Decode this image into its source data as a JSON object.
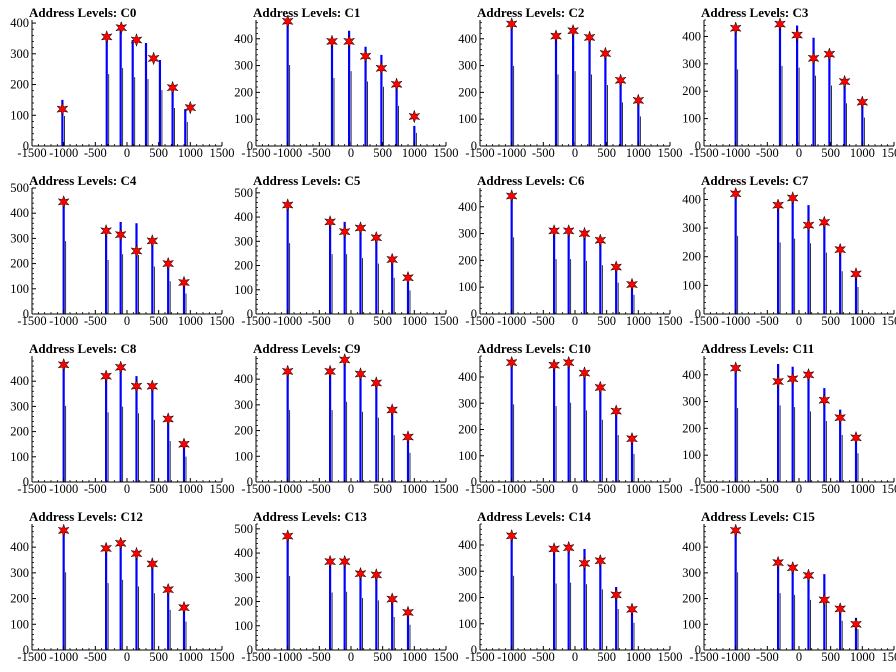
{
  "figure": {
    "panels": [
      {
        "title": "Address Levels: C0"
      },
      {
        "title": "Address Levels: C1"
      },
      {
        "title": "Address Levels: C2"
      },
      {
        "title": "Address Levels: C3"
      },
      {
        "title": "Address Levels: C4"
      },
      {
        "title": "Address Levels: C5"
      },
      {
        "title": "Address Levels: C6"
      },
      {
        "title": "Address Levels: C7"
      },
      {
        "title": "Address Levels: C8"
      },
      {
        "title": "Address Levels: C9"
      },
      {
        "title": "Address Levels: C10"
      },
      {
        "title": "Address Levels: C11"
      },
      {
        "title": "Address Levels: C12"
      },
      {
        "title": "Address Levels: C13"
      },
      {
        "title": "Address Levels: C14"
      },
      {
        "title": "Address Levels: C15"
      }
    ]
  },
  "colors": {
    "histogram": "#0000ff",
    "peak_marker": "#ff0000",
    "axis": "#000000"
  },
  "chart_data": [
    {
      "type": "bar",
      "title": "Address Levels: C0",
      "xlim": [
        -1500,
        1500
      ],
      "ylim": [
        0,
        410
      ],
      "xticks": [
        -1500,
        -1000,
        -500,
        0,
        500,
        1000,
        1500
      ],
      "xtick_labels": [
        "-1500",
        "-1000",
        "-500",
        "0",
        "500",
        "1000",
        "1500"
      ],
      "yticks": [
        0,
        100,
        200,
        300,
        400
      ],
      "ytick_labels": [
        "0",
        "100",
        "200",
        "300",
        "400"
      ],
      "bars_x": [
        -1020,
        -320,
        -100,
        90,
        300,
        520,
        720,
        920
      ],
      "bars_y": [
        150,
        360,
        390,
        345,
        335,
        280,
        190,
        120
      ],
      "peaks_x": [
        -1020,
        -320,
        -90,
        150,
        420,
        720,
        1000
      ],
      "peaks_y": [
        120,
        355,
        385,
        345,
        285,
        190,
        125
      ]
    },
    {
      "type": "bar",
      "title": "Address Levels: C1",
      "xlim": [
        -1500,
        1500
      ],
      "ylim": [
        0,
        470
      ],
      "xticks": [
        -1500,
        -1000,
        -500,
        0,
        500,
        1000,
        1500
      ],
      "xtick_labels": [
        "-1500",
        "-1000",
        "-500",
        "0",
        "500",
        "1000",
        "1500"
      ],
      "yticks": [
        0,
        100,
        200,
        300,
        400
      ],
      "ytick_labels": [
        "0",
        "100",
        "200",
        "300",
        "400"
      ],
      "bars_x": [
        -1000,
        -300,
        -30,
        230,
        480,
        720,
        1000
      ],
      "bars_y": [
        465,
        390,
        430,
        370,
        340,
        230,
        75
      ],
      "peaks_x": [
        -1000,
        -300,
        -30,
        230,
        480,
        720,
        1000
      ],
      "peaks_y": [
        465,
        390,
        390,
        335,
        290,
        230,
        110
      ]
    },
    {
      "type": "bar",
      "title": "Address Levels: C2",
      "xlim": [
        -1500,
        1500
      ],
      "ylim": [
        0,
        470
      ],
      "xticks": [
        -1500,
        -1000,
        -500,
        0,
        500,
        1000,
        1500
      ],
      "xtick_labels": [
        "-1500",
        "-1000",
        "-500",
        "0",
        "500",
        "1000",
        "1500"
      ],
      "yticks": [
        0,
        100,
        200,
        300,
        400
      ],
      "ytick_labels": [
        "0",
        "100",
        "200",
        "300",
        "400"
      ],
      "bars_x": [
        -1000,
        -300,
        -30,
        230,
        480,
        720,
        1000
      ],
      "bars_y": [
        460,
        410,
        430,
        410,
        350,
        250,
        170
      ],
      "peaks_x": [
        -1000,
        -300,
        -30,
        230,
        480,
        720,
        1000
      ],
      "peaks_y": [
        455,
        410,
        430,
        405,
        345,
        245,
        170
      ]
    },
    {
      "type": "bar",
      "title": "Address Levels: C3",
      "xlim": [
        -1500,
        1500
      ],
      "ylim": [
        0,
        460
      ],
      "xticks": [
        -1500,
        -1000,
        -500,
        0,
        500,
        1000,
        1500
      ],
      "xtick_labels": [
        "-1500",
        "-1000",
        "-500",
        "0",
        "500",
        "1000",
        "1500"
      ],
      "yticks": [
        0,
        100,
        200,
        300,
        400
      ],
      "ytick_labels": [
        "0",
        "100",
        "200",
        "300",
        "400"
      ],
      "bars_x": [
        -1000,
        -300,
        -30,
        230,
        480,
        720,
        1000
      ],
      "bars_y": [
        430,
        450,
        440,
        395,
        340,
        240,
        160
      ],
      "peaks_x": [
        -1000,
        -300,
        -30,
        230,
        480,
        720,
        1000
      ],
      "peaks_y": [
        430,
        445,
        405,
        320,
        335,
        235,
        160
      ]
    },
    {
      "type": "bar",
      "title": "Address Levels: C4",
      "xlim": [
        -1500,
        1500
      ],
      "ylim": [
        0,
        500
      ],
      "xticks": [
        -1500,
        -1000,
        -500,
        0,
        500,
        1000,
        1500
      ],
      "xtick_labels": [
        "-1500",
        "-1000",
        "-500",
        "0",
        "500",
        "1000",
        "1500"
      ],
      "yticks": [
        0,
        100,
        200,
        300,
        400,
        500
      ],
      "ytick_labels": [
        "0",
        "100",
        "200",
        "300",
        "400",
        "500"
      ],
      "bars_x": [
        -1000,
        -330,
        -100,
        150,
        400,
        650,
        900
      ],
      "bars_y": [
        445,
        330,
        365,
        360,
        290,
        200,
        125
      ],
      "peaks_x": [
        -1000,
        -330,
        -100,
        150,
        400,
        650,
        900
      ],
      "peaks_y": [
        445,
        330,
        315,
        250,
        290,
        200,
        125
      ]
    },
    {
      "type": "bar",
      "title": "Address Levels: C5",
      "xlim": [
        -1500,
        1500
      ],
      "ylim": [
        0,
        520
      ],
      "xticks": [
        -1500,
        -1000,
        -500,
        0,
        500,
        1000,
        1500
      ],
      "xtick_labels": [
        "-1500",
        "-1000",
        "-500",
        "0",
        "500",
        "1000",
        "1500"
      ],
      "yticks": [
        0,
        100,
        200,
        300,
        400,
        500
      ],
      "ytick_labels": [
        "0",
        "100",
        "200",
        "300",
        "400",
        "500"
      ],
      "bars_x": [
        -1000,
        -330,
        -100,
        150,
        400,
        650,
        900
      ],
      "bars_y": [
        450,
        380,
        380,
        355,
        320,
        230,
        150
      ],
      "peaks_x": [
        -1000,
        -330,
        -100,
        150,
        400,
        650,
        900
      ],
      "peaks_y": [
        450,
        380,
        340,
        355,
        315,
        225,
        150
      ]
    },
    {
      "type": "bar",
      "title": "Address Levels: C6",
      "xlim": [
        -1500,
        1500
      ],
      "ylim": [
        0,
        470
      ],
      "xticks": [
        -1500,
        -1000,
        -500,
        0,
        500,
        1000,
        1500
      ],
      "xtick_labels": [
        "-1500",
        "-1000",
        "-500",
        "0",
        "500",
        "1000",
        "1500"
      ],
      "yticks": [
        0,
        100,
        200,
        300,
        400
      ],
      "ytick_labels": [
        "0",
        "100",
        "200",
        "300",
        "400"
      ],
      "bars_x": [
        -1000,
        -330,
        -100,
        150,
        400,
        650,
        900
      ],
      "bars_y": [
        440,
        315,
        315,
        305,
        280,
        180,
        110
      ],
      "peaks_x": [
        -1000,
        -330,
        -100,
        150,
        400,
        650,
        900
      ],
      "peaks_y": [
        440,
        310,
        310,
        300,
        275,
        175,
        110
      ]
    },
    {
      "type": "bar",
      "title": "Address Levels: C7",
      "xlim": [
        -1500,
        1500
      ],
      "ylim": [
        0,
        440
      ],
      "xticks": [
        -1500,
        -1000,
        -500,
        0,
        500,
        1000,
        1500
      ],
      "xtick_labels": [
        "-1500",
        "-1000",
        "-500",
        "0",
        "500",
        "1000",
        "1500"
      ],
      "yticks": [
        0,
        100,
        200,
        300,
        400
      ],
      "ytick_labels": [
        "0",
        "100",
        "200",
        "300",
        "400"
      ],
      "bars_x": [
        -1000,
        -330,
        -100,
        150,
        400,
        650,
        900
      ],
      "bars_y": [
        420,
        385,
        405,
        380,
        330,
        230,
        145
      ],
      "peaks_x": [
        -1000,
        -330,
        -100,
        150,
        400,
        650,
        900
      ],
      "peaks_y": [
        420,
        380,
        405,
        310,
        320,
        225,
        140
      ]
    },
    {
      "type": "bar",
      "title": "Address Levels: C8",
      "xlim": [
        -1500,
        1500
      ],
      "ylim": [
        0,
        500
      ],
      "xticks": [
        -1500,
        -1000,
        -500,
        0,
        500,
        1000,
        1500
      ],
      "xtick_labels": [
        "-1500",
        "-1000",
        "-500",
        "0",
        "500",
        "1000",
        "1500"
      ],
      "yticks": [
        0,
        100,
        200,
        300,
        400
      ],
      "ytick_labels": [
        "0",
        "100",
        "200",
        "300",
        "400"
      ],
      "bars_x": [
        -1000,
        -330,
        -100,
        150,
        400,
        650,
        900
      ],
      "bars_y": [
        465,
        425,
        460,
        420,
        380,
        250,
        155
      ],
      "peaks_x": [
        -1000,
        -330,
        -100,
        150,
        400,
        650,
        900
      ],
      "peaks_y": [
        465,
        420,
        455,
        380,
        380,
        250,
        150
      ]
    },
    {
      "type": "bar",
      "title": "Address Levels: C9",
      "xlim": [
        -1500,
        1500
      ],
      "ylim": [
        0,
        490
      ],
      "xticks": [
        -1500,
        -1000,
        -500,
        0,
        500,
        1000,
        1500
      ],
      "xtick_labels": [
        "-1500",
        "-1000",
        "-500",
        "0",
        "500",
        "1000",
        "1500"
      ],
      "yticks": [
        0,
        100,
        200,
        300,
        400
      ],
      "ytick_labels": [
        "0",
        "100",
        "200",
        "300",
        "400"
      ],
      "bars_x": [
        -1000,
        -330,
        -100,
        150,
        400,
        650,
        900
      ],
      "bars_y": [
        430,
        430,
        480,
        420,
        385,
        280,
        175
      ],
      "peaks_x": [
        -1000,
        -330,
        -100,
        150,
        400,
        650,
        900
      ],
      "peaks_y": [
        430,
        430,
        475,
        420,
        385,
        280,
        175
      ]
    },
    {
      "type": "bar",
      "title": "Address Levels: C10",
      "xlim": [
        -1500,
        1500
      ],
      "ylim": [
        0,
        480
      ],
      "xticks": [
        -1500,
        -1000,
        -500,
        0,
        500,
        1000,
        1500
      ],
      "xtick_labels": [
        "-1500",
        "-1000",
        "-500",
        "0",
        "500",
        "1000",
        "1500"
      ],
      "yticks": [
        0,
        100,
        200,
        300,
        400
      ],
      "ytick_labels": [
        "0",
        "100",
        "200",
        "300",
        "400"
      ],
      "bars_x": [
        -1000,
        -330,
        -100,
        150,
        400,
        650,
        900
      ],
      "bars_y": [
        455,
        445,
        465,
        420,
        365,
        275,
        165
      ],
      "peaks_x": [
        -1000,
        -330,
        -100,
        150,
        400,
        650,
        900
      ],
      "peaks_y": [
        455,
        445,
        455,
        415,
        360,
        270,
        165
      ]
    },
    {
      "type": "bar",
      "title": "Address Levels: C11",
      "xlim": [
        -1500,
        1500
      ],
      "ylim": [
        0,
        470
      ],
      "xticks": [
        -1500,
        -1000,
        -500,
        0,
        500,
        1000,
        1500
      ],
      "xtick_labels": [
        "-1500",
        "-1000",
        "-500",
        "0",
        "500",
        "1000",
        "1500"
      ],
      "yticks": [
        0,
        100,
        200,
        300,
        400
      ],
      "ytick_labels": [
        "0",
        "100",
        "200",
        "300",
        "400"
      ],
      "bars_x": [
        -1000,
        -330,
        -100,
        150,
        400,
        650,
        900
      ],
      "bars_y": [
        425,
        440,
        430,
        405,
        350,
        270,
        165
      ],
      "peaks_x": [
        -1000,
        -330,
        -100,
        150,
        400,
        650,
        900
      ],
      "peaks_y": [
        425,
        375,
        385,
        400,
        305,
        240,
        165
      ]
    },
    {
      "type": "bar",
      "title": "Address Levels: C12",
      "xlim": [
        -1500,
        1500
      ],
      "ylim": [
        0,
        490
      ],
      "xticks": [
        -1500,
        -1000,
        -500,
        0,
        500,
        1000,
        1500
      ],
      "xtick_labels": [
        "-1500",
        "-1000",
        "-500",
        "0",
        "500",
        "1000",
        "1500"
      ],
      "yticks": [
        0,
        100,
        200,
        300,
        400
      ],
      "ytick_labels": [
        "0",
        "100",
        "200",
        "300",
        "400"
      ],
      "bars_x": [
        -1000,
        -330,
        -100,
        150,
        400,
        650,
        900
      ],
      "bars_y": [
        465,
        400,
        420,
        380,
        340,
        240,
        170
      ],
      "peaks_x": [
        -1000,
        -330,
        -100,
        150,
        400,
        650,
        900
      ],
      "peaks_y": [
        465,
        395,
        415,
        375,
        335,
        235,
        165
      ]
    },
    {
      "type": "bar",
      "title": "Address Levels: C13",
      "xlim": [
        -1500,
        1500
      ],
      "ylim": [
        0,
        520
      ],
      "xticks": [
        -1500,
        -1000,
        -500,
        0,
        500,
        1000,
        1500
      ],
      "xtick_labels": [
        "-1500",
        "-1000",
        "-500",
        "0",
        "500",
        "1000",
        "1500"
      ],
      "yticks": [
        0,
        100,
        200,
        300,
        400,
        500
      ],
      "ytick_labels": [
        "0",
        "100",
        "200",
        "300",
        "400",
        "500"
      ],
      "bars_x": [
        -1000,
        -330,
        -100,
        150,
        400,
        650,
        900
      ],
      "bars_y": [
        470,
        365,
        370,
        330,
        315,
        210,
        160
      ],
      "peaks_x": [
        -1000,
        -330,
        -100,
        150,
        400,
        650,
        900
      ],
      "peaks_y": [
        470,
        365,
        365,
        315,
        310,
        210,
        155
      ]
    },
    {
      "type": "bar",
      "title": "Address Levels: C14",
      "xlim": [
        -1500,
        1500
      ],
      "ylim": [
        0,
        480
      ],
      "xticks": [
        -1500,
        -1000,
        -500,
        0,
        500,
        1000,
        1500
      ],
      "xtick_labels": [
        "-1500",
        "-1000",
        "-500",
        "0",
        "500",
        "1000",
        "1500"
      ],
      "yticks": [
        0,
        100,
        200,
        300,
        400
      ],
      "ytick_labels": [
        "0",
        "100",
        "200",
        "300",
        "400"
      ],
      "bars_x": [
        -1000,
        -330,
        -100,
        150,
        400,
        650,
        900
      ],
      "bars_y": [
        435,
        390,
        395,
        385,
        355,
        240,
        160
      ],
      "peaks_x": [
        -1000,
        -330,
        -100,
        150,
        400,
        650,
        900
      ],
      "peaks_y": [
        435,
        385,
        390,
        330,
        340,
        210,
        155
      ]
    },
    {
      "type": "bar",
      "title": "Address Levels: C15",
      "xlim": [
        -1500,
        1500
      ],
      "ylim": [
        0,
        490
      ],
      "xticks": [
        -1500,
        -1000,
        -500,
        0,
        500,
        1000,
        1500
      ],
      "xtick_labels": [
        "-1500",
        "-1000",
        "-500",
        "0",
        "500",
        "1000",
        "1500"
      ],
      "yticks": [
        0,
        100,
        200,
        300,
        400
      ],
      "ytick_labels": [
        "0",
        "100",
        "200",
        "300",
        "400"
      ],
      "bars_x": [
        -1000,
        -330,
        -100,
        150,
        400,
        650,
        900
      ],
      "bars_y": [
        465,
        340,
        330,
        300,
        295,
        175,
        125
      ],
      "peaks_x": [
        -1000,
        -330,
        -100,
        150,
        400,
        650,
        900
      ],
      "peaks_y": [
        465,
        340,
        320,
        290,
        195,
        160,
        100
      ]
    }
  ]
}
